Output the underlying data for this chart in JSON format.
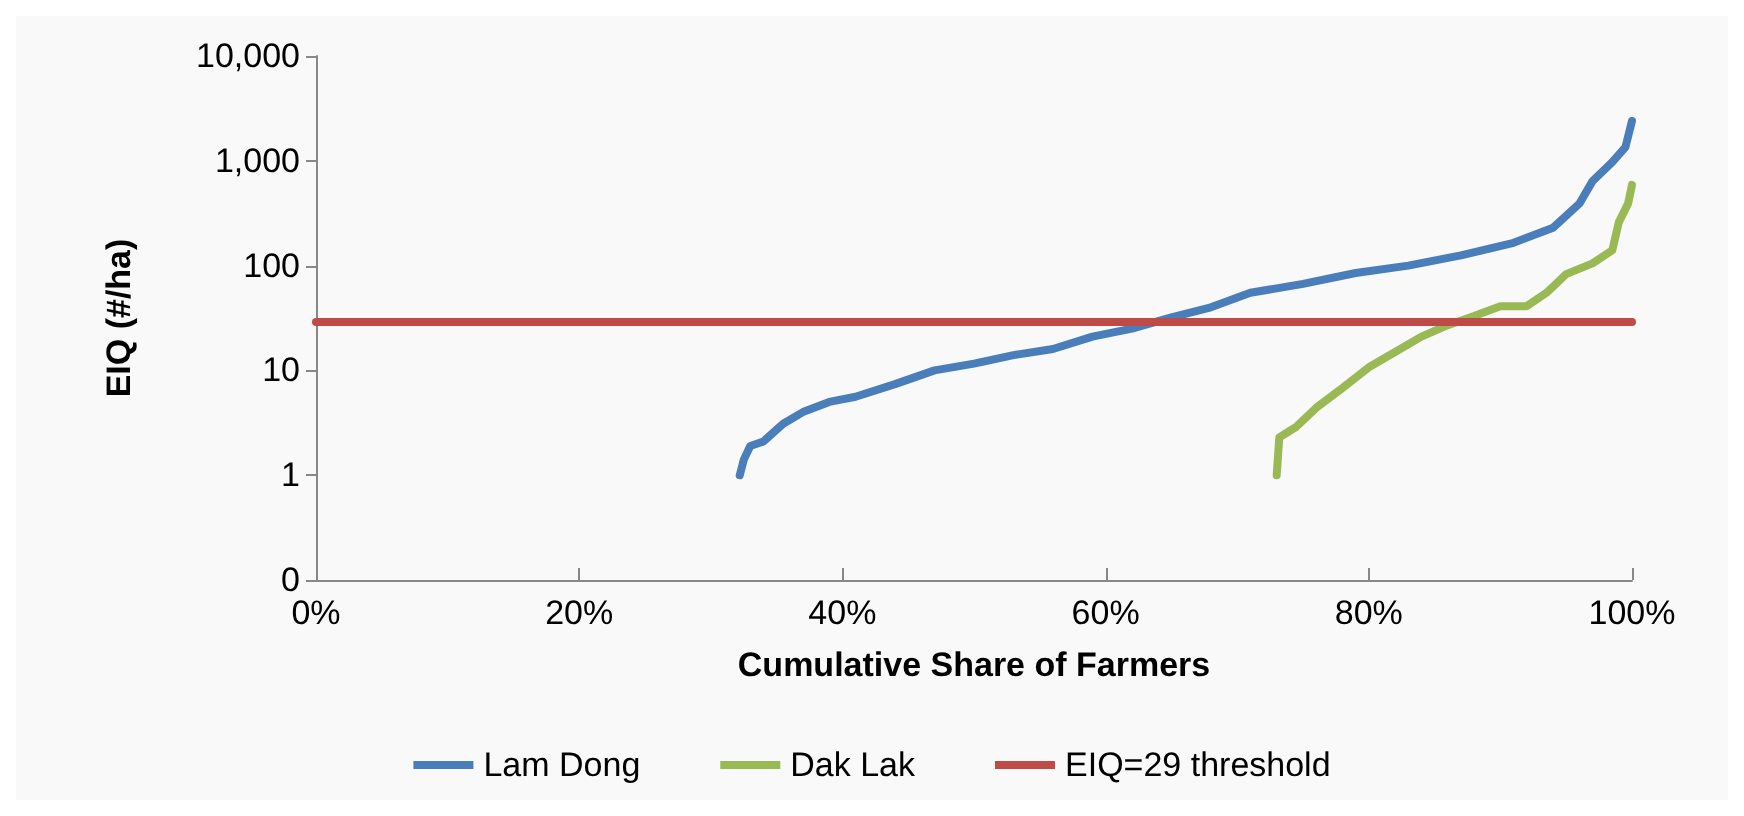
{
  "chart_data": {
    "type": "line",
    "xlabel": "Cumulative Share of Farmers",
    "ylabel": "EIQ (#/ha)",
    "log": "y",
    "ylim": [
      0.1,
      10000
    ],
    "yticks": [
      {
        "value": 0.1,
        "label": "0"
      },
      {
        "value": 1,
        "label": "1"
      },
      {
        "value": 10,
        "label": "10"
      },
      {
        "value": 100,
        "label": "100"
      },
      {
        "value": 1000,
        "label": "1,000"
      },
      {
        "value": 10000,
        "label": "10,000"
      }
    ],
    "xlim": [
      0,
      100
    ],
    "xticks": [
      {
        "value": 0,
        "label": "0%"
      },
      {
        "value": 20,
        "label": "20%"
      },
      {
        "value": 40,
        "label": "40%"
      },
      {
        "value": 60,
        "label": "60%"
      },
      {
        "value": 80,
        "label": "80%"
      },
      {
        "value": 100,
        "label": "100%"
      }
    ],
    "grid": false,
    "legend": "bottom",
    "marker": "none",
    "line_style": "solid",
    "series": [
      {
        "name": "Lam Dong",
        "color": "#4a7ebb",
        "x": [
          32.2,
          32.5,
          33,
          34,
          35.5,
          37,
          39,
          41,
          44,
          47,
          50,
          53,
          56,
          59,
          62,
          65,
          68,
          71,
          75,
          79,
          83,
          87,
          91,
          94,
          96,
          97,
          98.5,
          99.5,
          100
        ],
        "values": [
          1,
          1.4,
          1.9,
          2.1,
          3.1,
          4,
          5,
          5.6,
          7.4,
          10,
          11.6,
          14,
          16,
          21,
          25,
          32,
          40,
          55,
          67,
          85,
          100,
          125,
          165,
          230,
          390,
          640,
          970,
          1350,
          2400
        ]
      },
      {
        "name": "Dak Lak",
        "color": "#98b954",
        "x": [
          73,
          73.2,
          74.5,
          76,
          78,
          80,
          82,
          84,
          86,
          88,
          90,
          92,
          93.5,
          95,
          97,
          98.5,
          99,
          99.7,
          100
        ],
        "values": [
          1,
          2.3,
          2.9,
          4.4,
          6.8,
          10.7,
          15,
          21,
          27,
          33,
          41,
          41,
          55,
          83,
          105,
          140,
          260,
          390,
          590
        ]
      },
      {
        "name": "EIQ=29 threshold",
        "color": "#be4b48",
        "x": [
          0,
          100
        ],
        "values": [
          29,
          29
        ]
      }
    ]
  }
}
